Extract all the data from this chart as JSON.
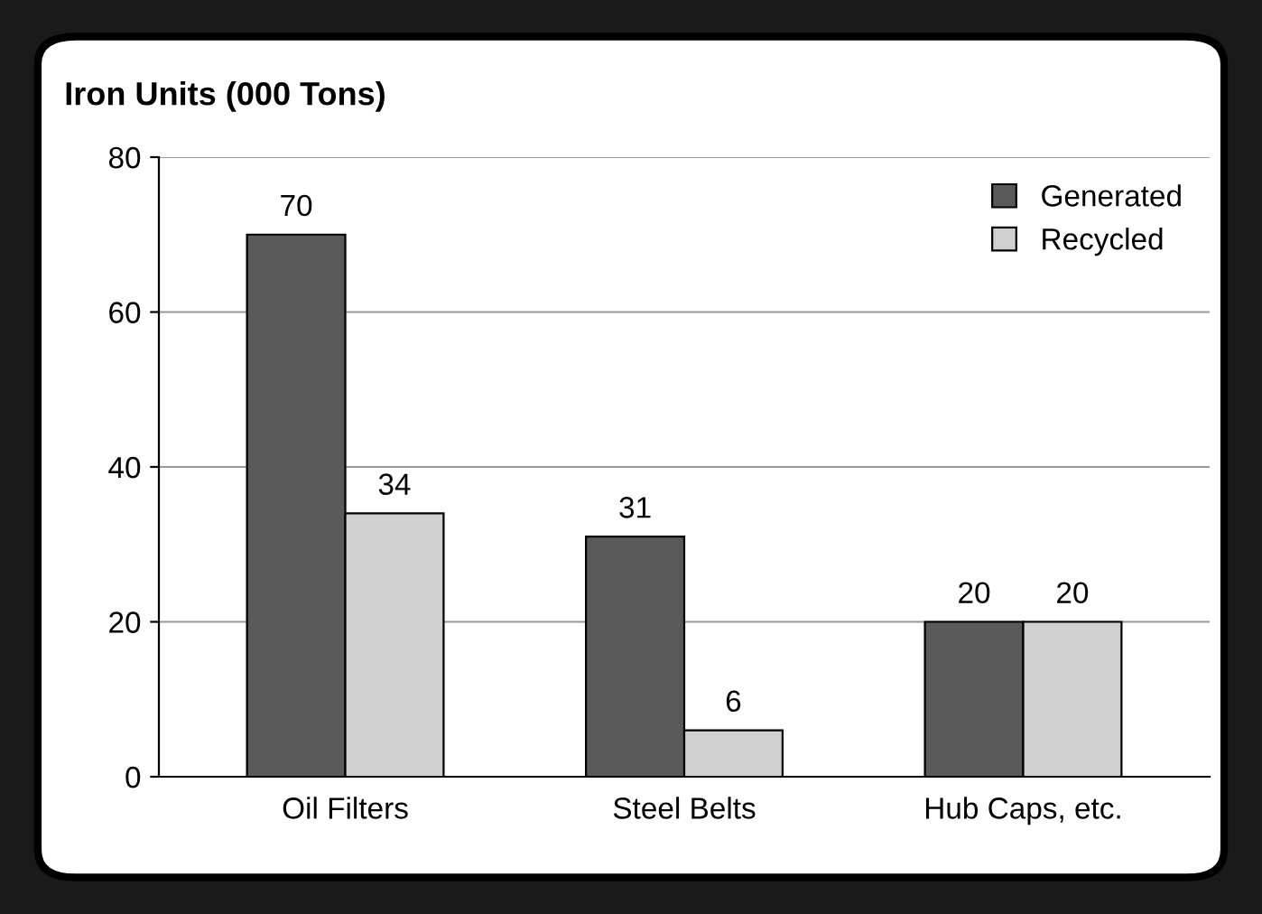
{
  "chart_data": {
    "type": "bar",
    "title": "Iron Units (000 Tons)",
    "categories": [
      "Oil Filters",
      "Steel Belts",
      "Hub Caps, etc."
    ],
    "series": [
      {
        "name": "Generated",
        "color": "#5a5a5a",
        "values": [
          70,
          31,
          20
        ]
      },
      {
        "name": "Recycled",
        "color": "#d0d0d0",
        "values": [
          34,
          6,
          20
        ]
      }
    ],
    "ylim": [
      0,
      80
    ],
    "yticks": [
      0,
      20,
      40,
      60,
      80
    ],
    "grid": "y",
    "legend": "top right",
    "data_labels": true
  }
}
